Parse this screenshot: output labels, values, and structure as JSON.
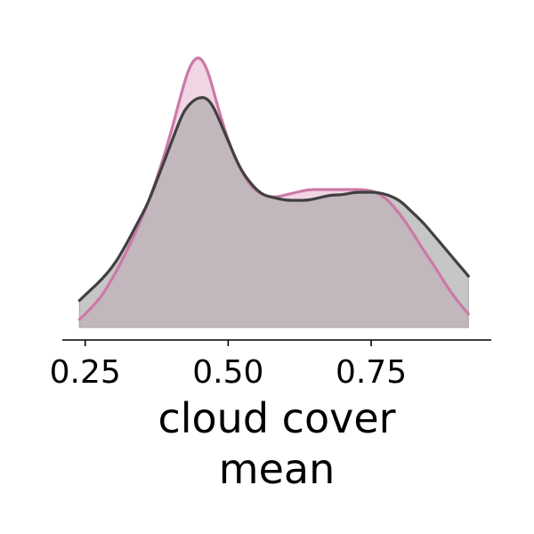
{
  "chart_data": {
    "type": "area",
    "title": "",
    "xlabel": [
      "cloud cover",
      "mean"
    ],
    "ylabel": "",
    "xlim": [
      0.21,
      0.96
    ],
    "ylim": [
      0,
      1.0
    ],
    "x_ticks": [
      0.25,
      0.5,
      0.75
    ],
    "x_tick_labels": [
      "0.25",
      "0.50",
      "0.75"
    ],
    "y_axis_visible": false,
    "grid": false,
    "legend": "none",
    "series": [
      {
        "color": "#cc79a7",
        "fill": "#e8bfd6",
        "x": [
          0.24,
          0.26,
          0.28,
          0.3,
          0.32,
          0.34,
          0.36,
          0.38,
          0.4,
          0.42,
          0.43,
          0.44,
          0.45,
          0.46,
          0.47,
          0.48,
          0.5,
          0.52,
          0.54,
          0.56,
          0.58,
          0.6,
          0.62,
          0.64,
          0.66,
          0.68,
          0.7,
          0.72,
          0.74,
          0.76,
          0.78,
          0.8,
          0.82,
          0.84,
          0.86,
          0.88,
          0.9,
          0.92
        ],
        "y": [
          0.03,
          0.07,
          0.12,
          0.19,
          0.27,
          0.36,
          0.46,
          0.58,
          0.72,
          0.88,
          0.95,
          0.99,
          1.0,
          0.97,
          0.91,
          0.83,
          0.69,
          0.59,
          0.52,
          0.49,
          0.48,
          0.49,
          0.5,
          0.51,
          0.51,
          0.51,
          0.51,
          0.51,
          0.51,
          0.5,
          0.47,
          0.42,
          0.36,
          0.29,
          0.23,
          0.16,
          0.1,
          0.05
        ]
      },
      {
        "color": "#404040",
        "fill": "#a7a7a7",
        "x": [
          0.24,
          0.26,
          0.28,
          0.3,
          0.32,
          0.34,
          0.36,
          0.38,
          0.4,
          0.42,
          0.43,
          0.44,
          0.45,
          0.46,
          0.47,
          0.48,
          0.5,
          0.52,
          0.54,
          0.56,
          0.58,
          0.6,
          0.62,
          0.64,
          0.66,
          0.68,
          0.7,
          0.72,
          0.74,
          0.76,
          0.78,
          0.8,
          0.82,
          0.84,
          0.86,
          0.88,
          0.9,
          0.92
        ],
        "y": [
          0.1,
          0.14,
          0.18,
          0.23,
          0.3,
          0.38,
          0.46,
          0.57,
          0.68,
          0.79,
          0.82,
          0.84,
          0.85,
          0.85,
          0.83,
          0.79,
          0.69,
          0.59,
          0.53,
          0.49,
          0.48,
          0.47,
          0.47,
          0.47,
          0.48,
          0.49,
          0.49,
          0.5,
          0.5,
          0.5,
          0.49,
          0.47,
          0.43,
          0.39,
          0.34,
          0.29,
          0.24,
          0.19
        ]
      }
    ]
  }
}
